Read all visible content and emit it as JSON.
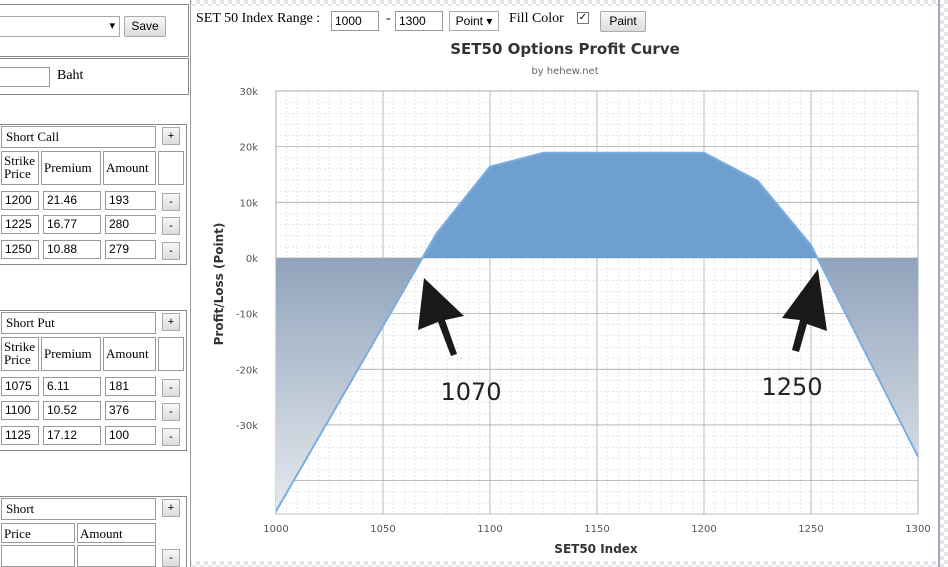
{
  "portfolio": {
    "save_label": "Save",
    "selected": ""
  },
  "capital": {
    "value": "",
    "unit": "Baht"
  },
  "short_call": {
    "title": "Short Call",
    "add_label": "+",
    "headers": [
      "Strike Price",
      "Premium",
      "Amount"
    ],
    "rows": [
      {
        "strike": "1200",
        "premium": "21.46",
        "amount": "193"
      },
      {
        "strike": "1225",
        "premium": "16.77",
        "amount": "280"
      },
      {
        "strike": "1250",
        "premium": "10.88",
        "amount": "279"
      }
    ],
    "remove_label": "-"
  },
  "short_put": {
    "title": "Short Put",
    "add_label": "+",
    "headers": [
      "Strike Price",
      "Premium",
      "Amount"
    ],
    "rows": [
      {
        "strike": "1075",
        "premium": "6.11",
        "amount": "181"
      },
      {
        "strike": "1100",
        "premium": "10.52",
        "amount": "376"
      },
      {
        "strike": "1125",
        "premium": "17.12",
        "amount": "100"
      }
    ],
    "remove_label": "-"
  },
  "short_future": {
    "title": "Short",
    "add_label": "+",
    "headers": [
      "Price",
      "Amount"
    ],
    "remove_label": "-"
  },
  "toolbar": {
    "range_label": "SET 50 Index Range :",
    "range_from": "1000",
    "range_sep": "-",
    "range_to": "1300",
    "unit_select": "Point",
    "fill_label": "Fill Color",
    "fill_checked": true,
    "paint_label": "Paint"
  },
  "chart_data": {
    "type": "area",
    "title": "SET50 Options Profit Curve",
    "subtitle": "by hehew.net",
    "xlabel": "SET50 Index",
    "ylabel": "Profit/Loss (Point)",
    "xlim": [
      1000,
      1300
    ],
    "ylim": [
      -46000,
      30000
    ],
    "x_ticks": [
      1000,
      1050,
      1100,
      1150,
      1200,
      1250,
      1300
    ],
    "y_ticks": [
      30000,
      20000,
      10000,
      0,
      -10000,
      -20000,
      -30000
    ],
    "y_tick_labels": [
      "30k",
      "20k",
      "10k",
      "0k",
      "-10k",
      "-20k",
      "-30k"
    ],
    "series": [
      {
        "x": [
          1000,
          1075,
          1100,
          1125,
          1200,
          1225,
          1250,
          1300
        ],
        "y": [
          -45500,
          4400,
          16400,
          18900,
          18900,
          13900,
          2300,
          -35700
        ]
      }
    ],
    "colors": {
      "positive": "#6f9fcf",
      "negative": "#6d87a6",
      "line": "#7aaee0"
    },
    "annotations": [
      {
        "label": "1070",
        "x": 1070
      },
      {
        "label": "1250",
        "x": 1250
      }
    ]
  }
}
